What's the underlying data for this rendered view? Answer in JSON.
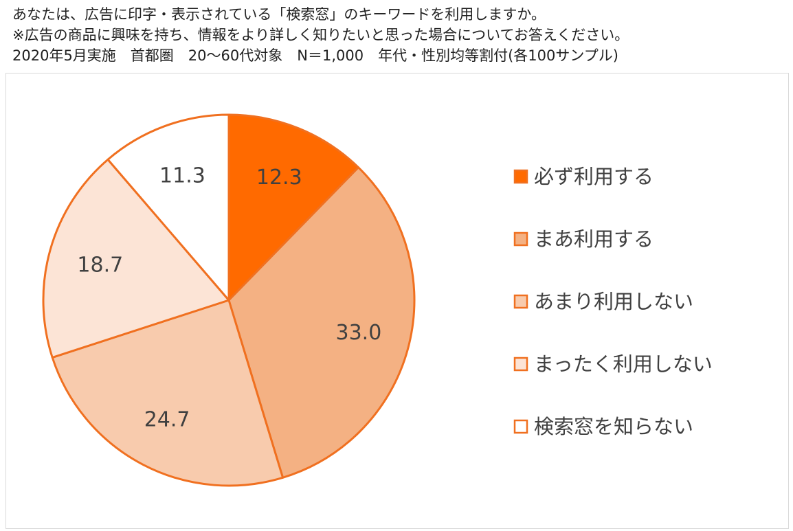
{
  "header": {
    "line1": "あなたは、広告に印字・表示されている「検索窓」のキーワードを利用しますか。",
    "line2": "※広告の商品に興味を持ち、情報をより詳しく知りたいと思った場合についてお答えください。",
    "line3": "2020年5月実施　首都圏　20〜60代対象　N＝1,000　年代・性別均等割付(各100サンプル)"
  },
  "chart_data": {
    "type": "pie",
    "title": "",
    "start_angle": "12 o'clock, clockwise",
    "legend_position": "right",
    "slices": [
      {
        "label": "必ず利用する",
        "value": 12.3,
        "display": "12.3",
        "color": "#ff6a00"
      },
      {
        "label": "まあ利用する",
        "value": 33.0,
        "display": "33.0",
        "color": "#f4b183"
      },
      {
        "label": "あまり利用しない",
        "value": 24.7,
        "display": "24.7",
        "color": "#f8cbad"
      },
      {
        "label": "まったく利用しない",
        "value": 18.7,
        "display": "18.7",
        "color": "#fce4d6"
      },
      {
        "label": "検索窓を知らない",
        "value": 11.3,
        "display": "11.3",
        "color": "#ffffff"
      }
    ],
    "stroke_color": "#f07020"
  }
}
